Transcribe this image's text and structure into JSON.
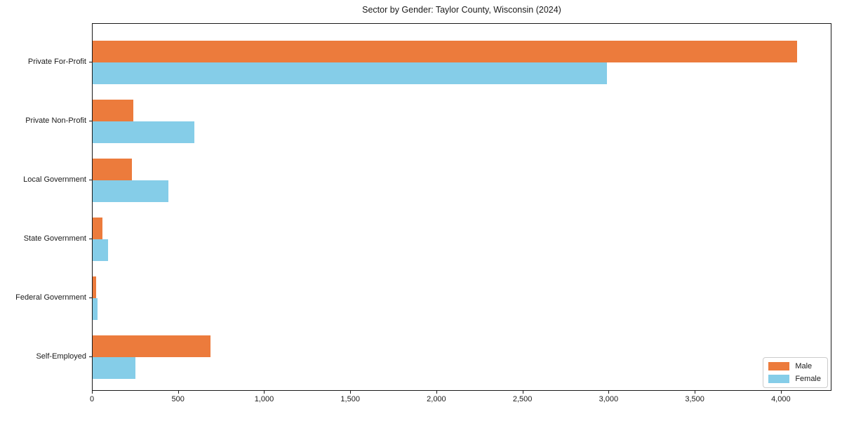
{
  "page": {
    "background": "#ffffff"
  },
  "chart_data": {
    "type": "bar",
    "orientation": "horizontal",
    "title": "Sector by Gender: Taylor County, Wisconsin (2024)",
    "categories": [
      "Private For-Profit",
      "Private Non-Profit",
      "Local Government",
      "State Government",
      "Federal Government",
      "Self-Employed"
    ],
    "series": [
      {
        "name": "Male",
        "color": "#ec7b3c",
        "values": [
          4090,
          235,
          230,
          55,
          20,
          685
        ]
      },
      {
        "name": "Female",
        "color": "#85cde8",
        "values": [
          2985,
          590,
          440,
          90,
          28,
          250
        ]
      }
    ],
    "xlabel": "",
    "ylabel": "",
    "xlim": [
      0,
      4294
    ],
    "xticks": [
      0,
      500,
      1000,
      1500,
      2000,
      2500,
      3000,
      3500,
      4000
    ],
    "xtick_labels": [
      "0",
      "500",
      "1,000",
      "1,500",
      "2,000",
      "2,500",
      "3,000",
      "3,500",
      "4,000"
    ],
    "grid": false,
    "legend_position": "lower right",
    "spine_color": "#1a1a1a"
  }
}
